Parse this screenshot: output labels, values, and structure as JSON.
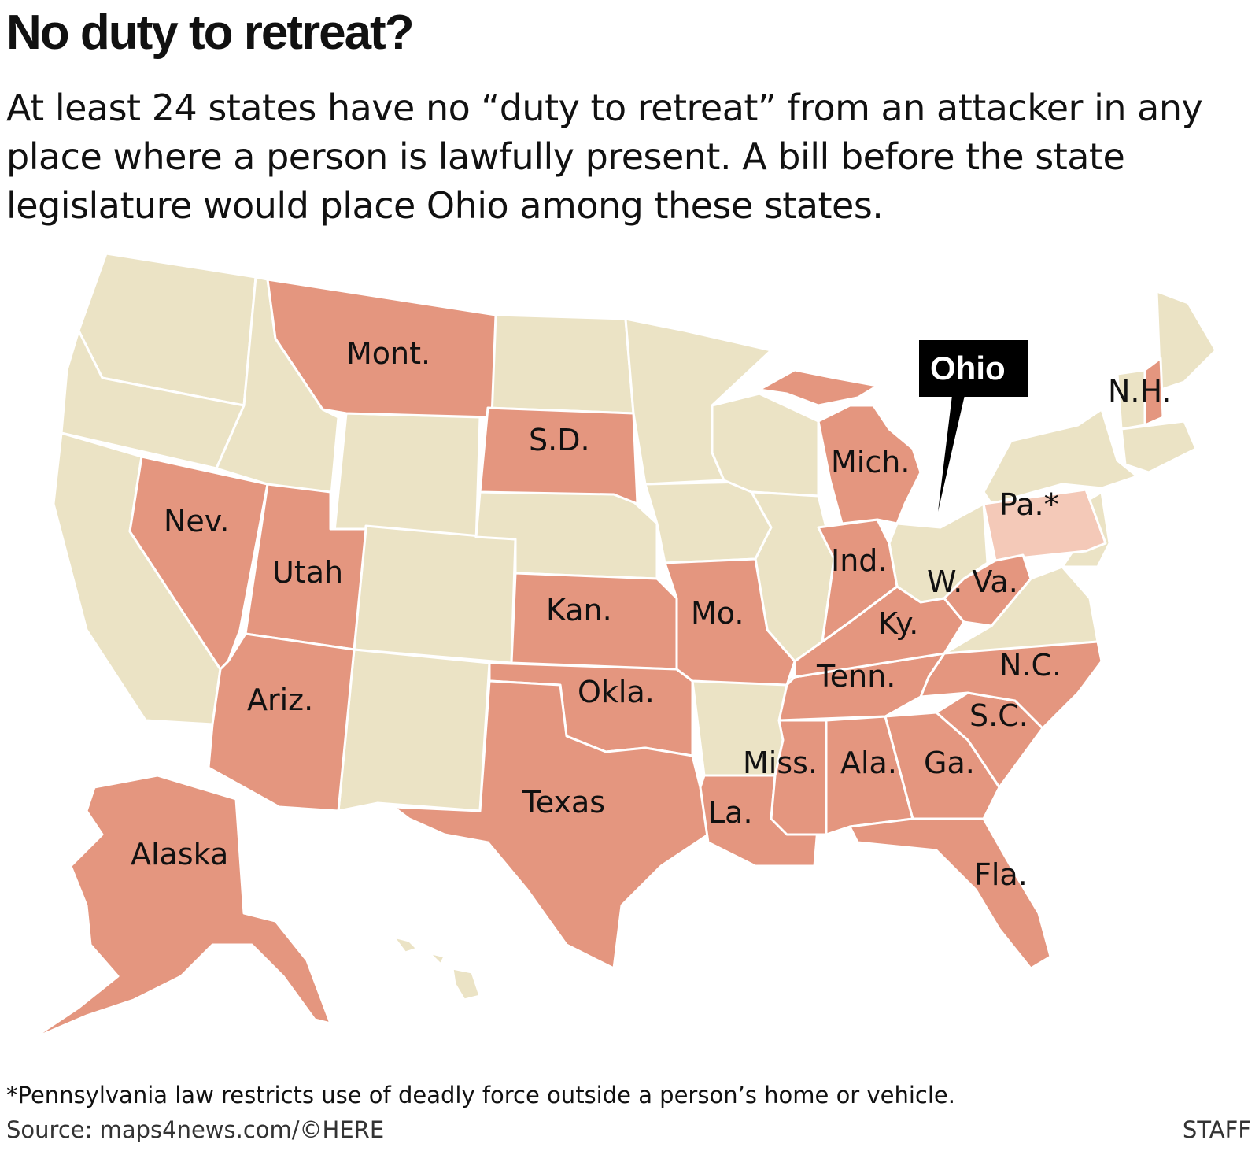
{
  "header": {
    "title": "No duty to retreat?",
    "subtitle": "At least 24 states have no “duty to retreat” from an attacker in any place where a person is lawfully present. A bill before the state legislature would place Ohio among these states."
  },
  "colors": {
    "no_duty_state": "#e4967f",
    "restricted_state": "#f4c9b8",
    "other_state": "#ebe3c5",
    "callout_bg": "#000000"
  },
  "map": {
    "callout": "Ohio",
    "labels": {
      "mont": "Mont.",
      "sd": "S.D.",
      "nev": "Nev.",
      "utah": "Utah",
      "ariz": "Ariz.",
      "kan": "Kan.",
      "okla": "Okla.",
      "texas": "Texas",
      "mo": "Mo.",
      "la": "La.",
      "miss": "Miss.",
      "ala": "Ala.",
      "ga": "Ga.",
      "fla": "Fla.",
      "sc": "S.C.",
      "nc": "N.C.",
      "tenn": "Tenn.",
      "ky": "Ky.",
      "wva": "W. Va.",
      "ind": "Ind.",
      "mich": "Mich.",
      "pa": "Pa.*",
      "nh": "N.H.",
      "alaska": "Alaska"
    }
  },
  "footer": {
    "footnote": "*Pennsylvania law restricts use of deadly force outside a person’s home or vehicle.",
    "source": "Source: maps4news.com/©HERE",
    "credit": "STAFF"
  }
}
